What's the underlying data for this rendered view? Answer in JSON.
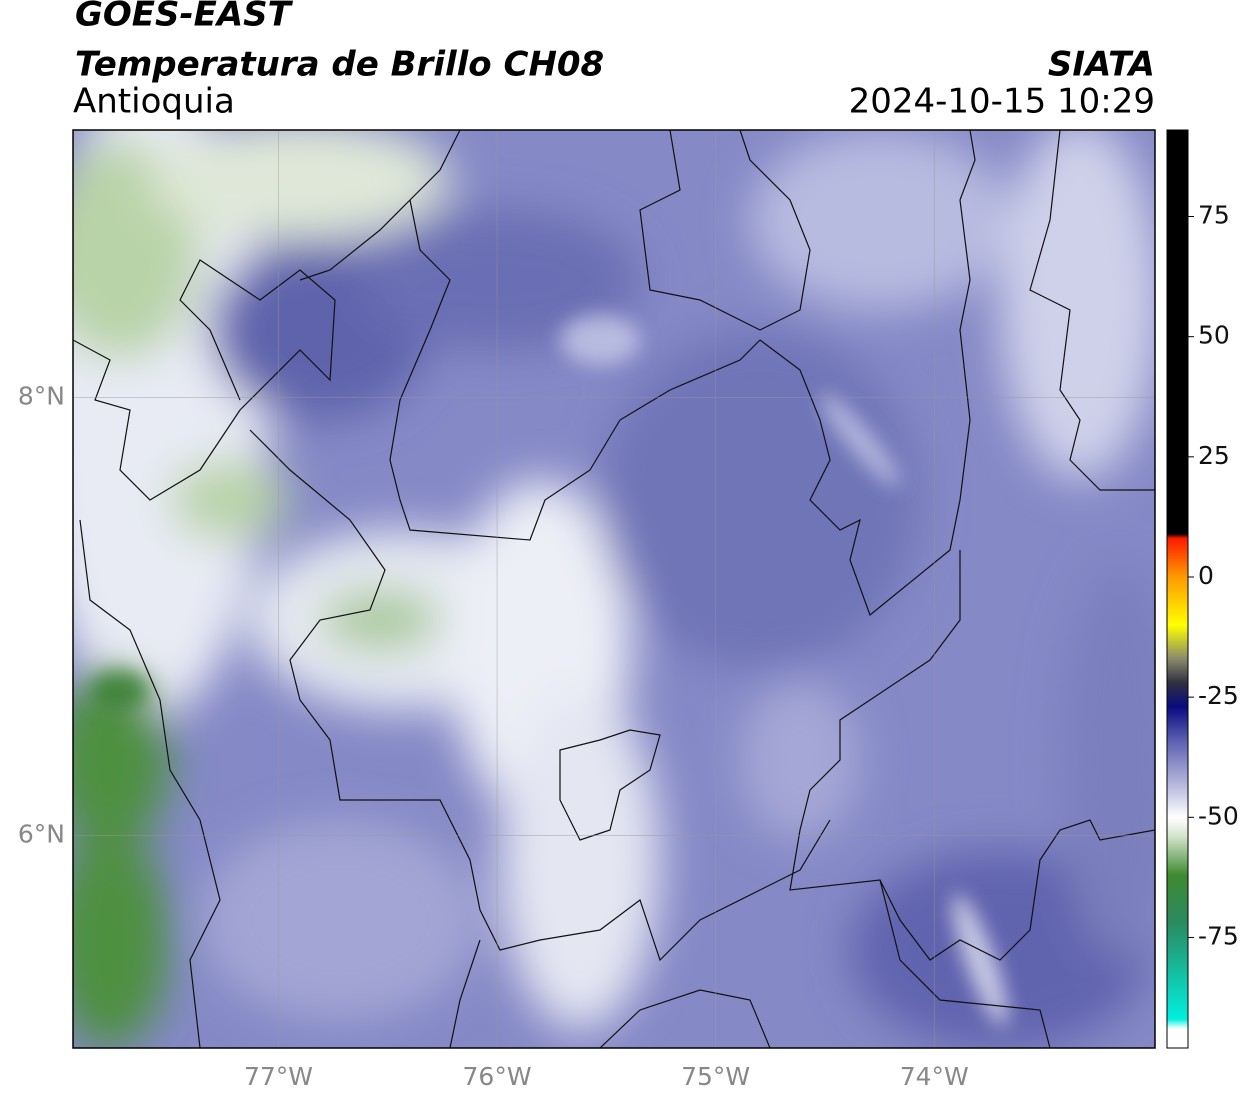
{
  "header": {
    "title": "GOES-EAST",
    "subtitle": "Temperatura de Brillo CH08",
    "region": "Antioquia",
    "source": "SIATA",
    "timestamp": "2024-10-15 10:29"
  },
  "map": {
    "xlim": [
      -77.94,
      -72.99
    ],
    "ylim": [
      5.03,
      9.22
    ],
    "xticks": [
      {
        "value": -77,
        "label": "77°W"
      },
      {
        "value": -76,
        "label": "76°W"
      },
      {
        "value": -75,
        "label": "75°W"
      },
      {
        "value": -74,
        "label": "74°W"
      }
    ],
    "yticks": [
      {
        "value": 8,
        "label": "8°N"
      },
      {
        "value": 6,
        "label": "6°N"
      }
    ],
    "grid": true
  },
  "colorbar": {
    "lim": [
      -98,
      93
    ],
    "ticks": [
      75,
      50,
      25,
      0,
      -25,
      -50,
      -75
    ],
    "stops": [
      {
        "value": 93,
        "color": "#000000"
      },
      {
        "value": 9,
        "color": "#000000"
      },
      {
        "value": 8,
        "color": "#ff1a00"
      },
      {
        "value": 0,
        "color": "#ff9a00"
      },
      {
        "value": -10,
        "color": "#ffff00"
      },
      {
        "value": -17,
        "color": "#8a8a6a"
      },
      {
        "value": -22,
        "color": "#303040"
      },
      {
        "value": -27,
        "color": "#0a0a80"
      },
      {
        "value": -34,
        "color": "#5b5fb0"
      },
      {
        "value": -45,
        "color": "#c8cae6"
      },
      {
        "value": -50,
        "color": "#ffffff"
      },
      {
        "value": -54,
        "color": "#d4e4cc"
      },
      {
        "value": -62,
        "color": "#3f8a30"
      },
      {
        "value": -72,
        "color": "#2a8a60"
      },
      {
        "value": -92,
        "color": "#00f0e0"
      },
      {
        "value": -94,
        "color": "#ffffff"
      },
      {
        "value": -98,
        "color": "#ffffff"
      }
    ]
  }
}
